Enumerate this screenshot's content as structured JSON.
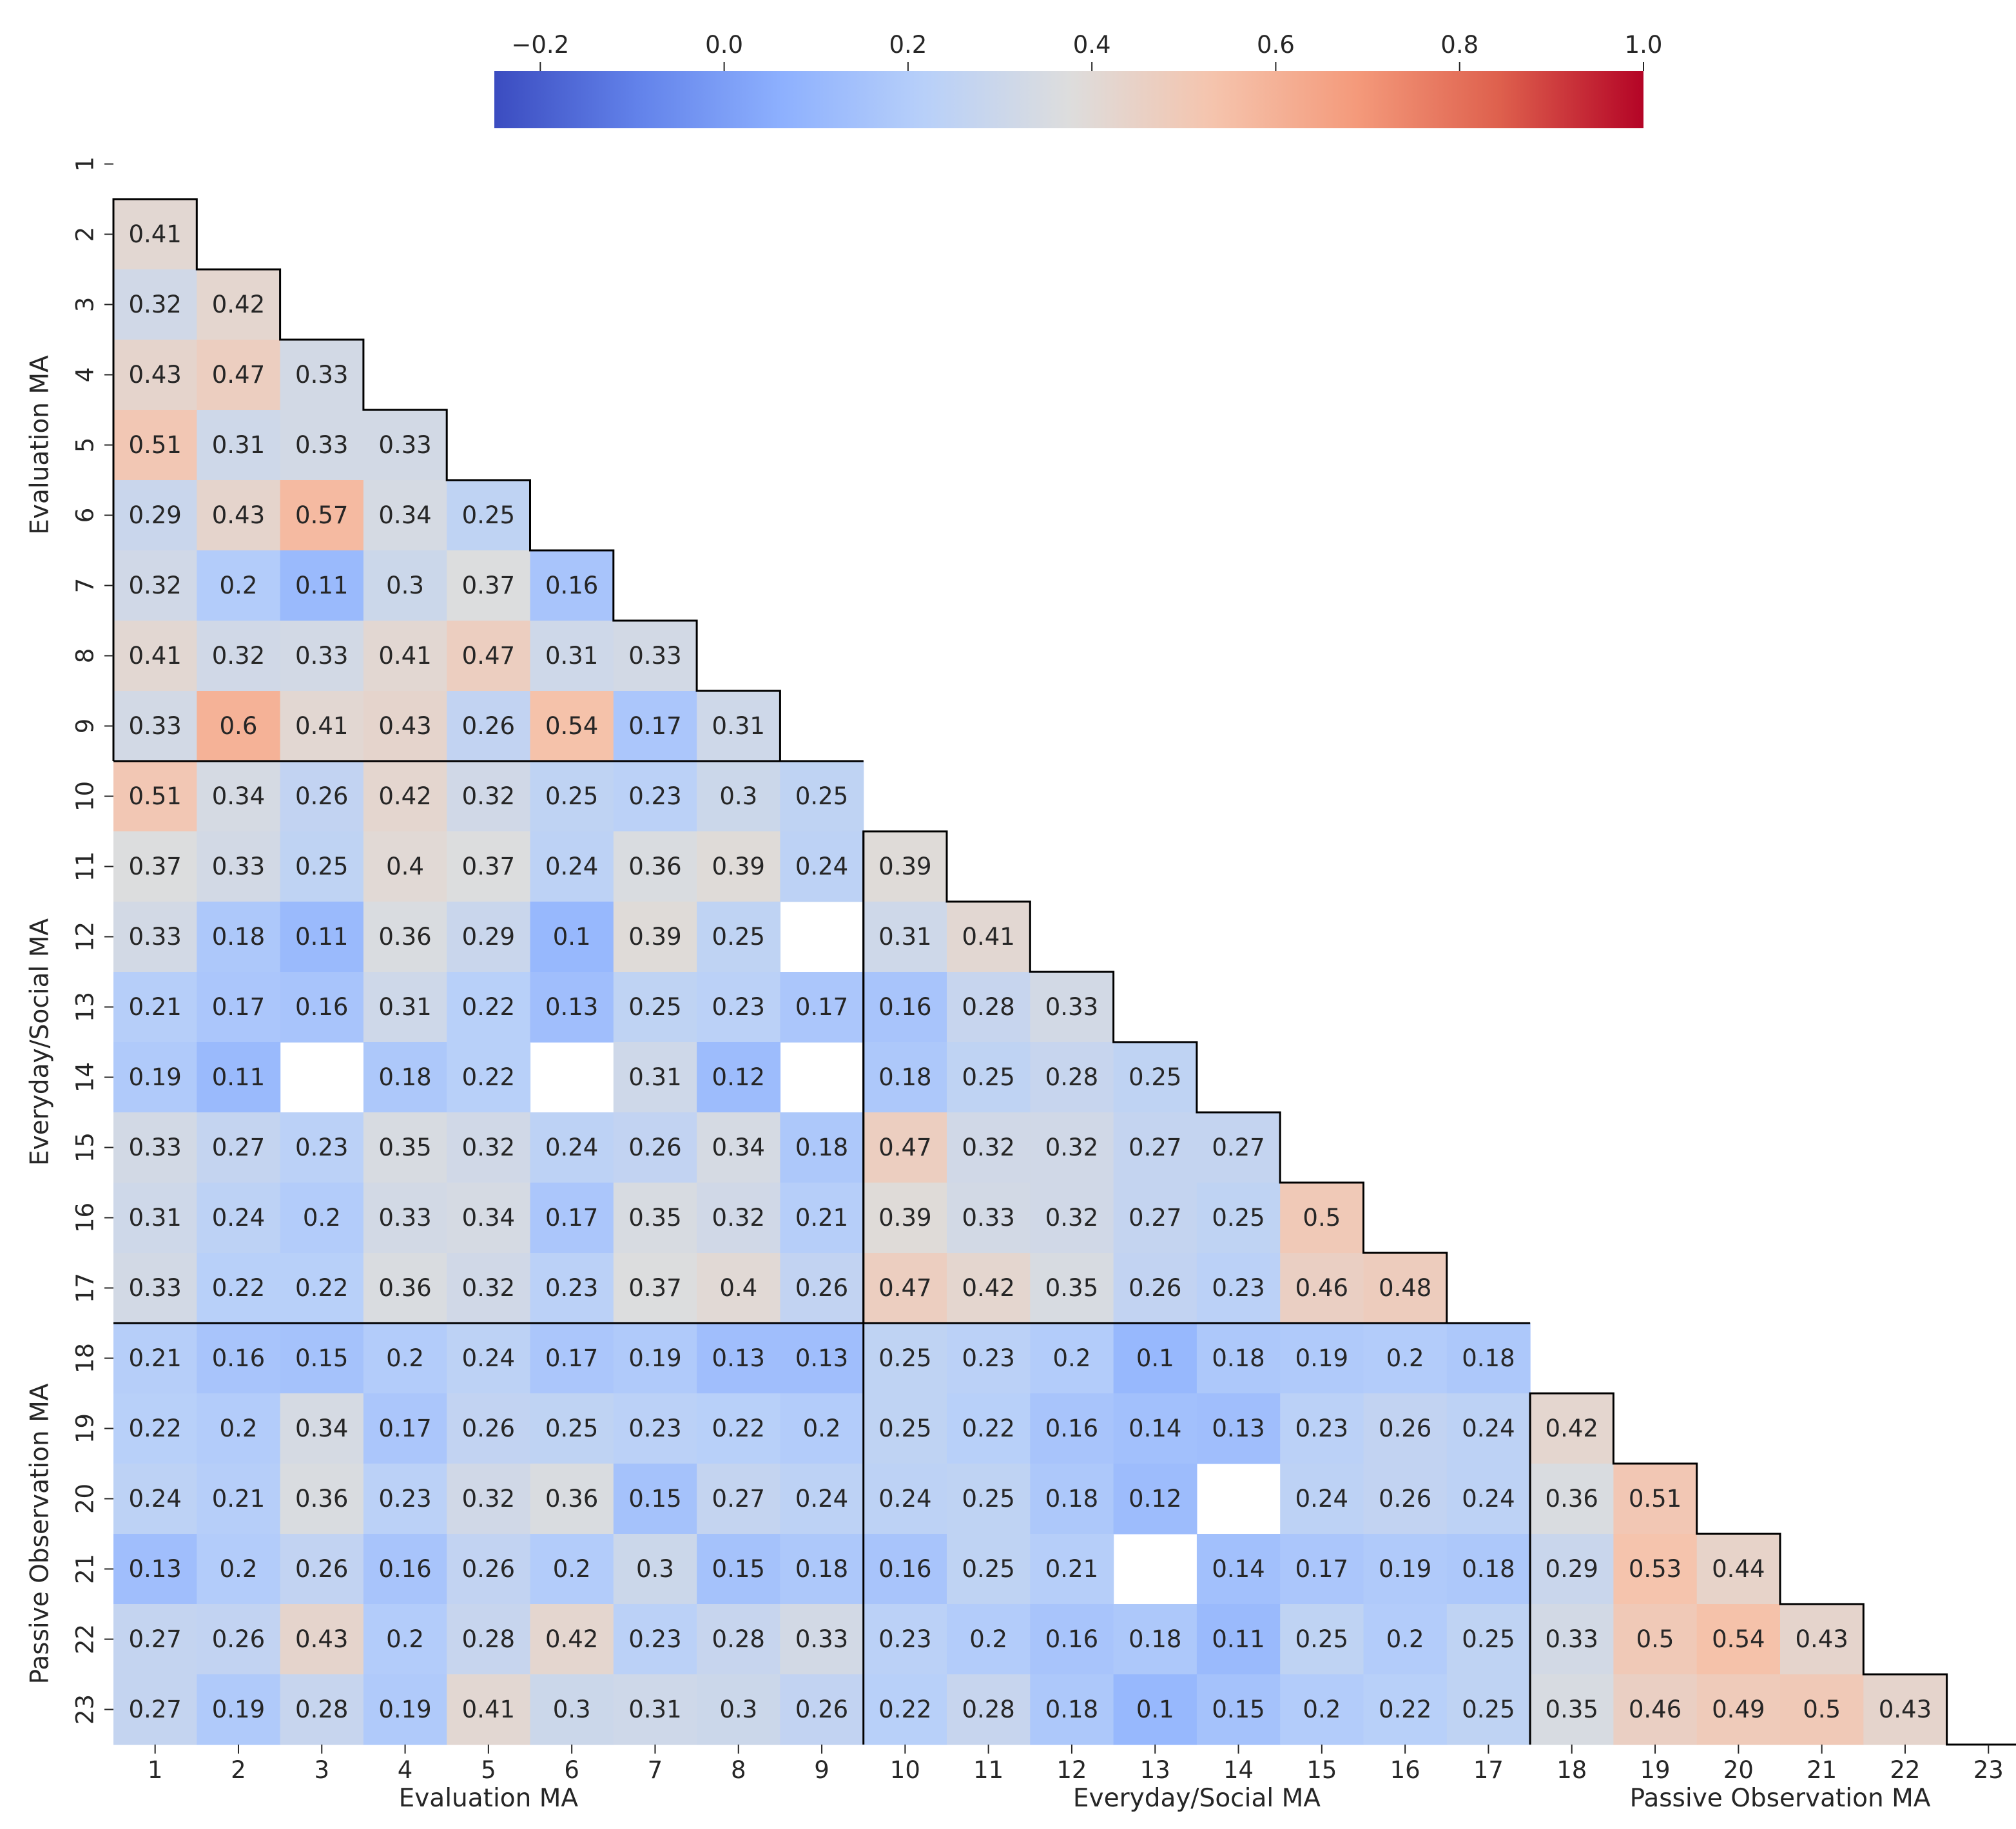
{
  "chart_data": {
    "type": "heatmap",
    "subtype": "lower-triangular correlation matrix",
    "colormap": "coolwarm",
    "vmin": -0.25,
    "vmax": 1.0,
    "labels": [
      "1",
      "2",
      "3",
      "4",
      "5",
      "6",
      "7",
      "8",
      "9",
      "10",
      "11",
      "12",
      "13",
      "14",
      "15",
      "16",
      "17",
      "18",
      "19",
      "20",
      "21",
      "22",
      "23"
    ],
    "x_tick_labels": [
      "1",
      "2",
      "3",
      "4",
      "5",
      "6",
      "7",
      "8",
      "9",
      "10",
      "11",
      "12",
      "13",
      "14",
      "15",
      "16",
      "17",
      "18",
      "19",
      "20",
      "21",
      "22",
      "23"
    ],
    "y_tick_labels": [
      "1",
      "2",
      "3",
      "4",
      "5",
      "6",
      "7",
      "8",
      "9",
      "10",
      "11",
      "12",
      "13",
      "14",
      "15",
      "16",
      "17",
      "18",
      "19",
      "20",
      "21",
      "22",
      "23"
    ],
    "colorbar": {
      "orientation": "horizontal",
      "position": "top",
      "ticks": [
        -0.2,
        0.0,
        0.2,
        0.4,
        0.6,
        0.8,
        1.0
      ],
      "tick_labels": [
        "−0.2",
        "0.0",
        "0.2",
        "0.4",
        "0.6",
        "0.8",
        "1.0"
      ]
    },
    "groups": [
      {
        "name": "Evaluation MA",
        "start": 1,
        "end": 9
      },
      {
        "name": "Everyday/Social MA",
        "start": 10,
        "end": 17
      },
      {
        "name": "Passive Observation MA",
        "start": 18,
        "end": 23
      }
    ],
    "matrix": [
      [],
      [
        0.41
      ],
      [
        0.32,
        0.42
      ],
      [
        0.43,
        0.47,
        0.33
      ],
      [
        0.51,
        0.31,
        0.33,
        0.33
      ],
      [
        0.29,
        0.43,
        0.57,
        0.34,
        0.25
      ],
      [
        0.32,
        0.2,
        0.11,
        0.3,
        0.37,
        0.16
      ],
      [
        0.41,
        0.32,
        0.33,
        0.41,
        0.47,
        0.31,
        0.33
      ],
      [
        0.33,
        0.6,
        0.41,
        0.43,
        0.26,
        0.54,
        0.17,
        0.31
      ],
      [
        0.51,
        0.34,
        0.26,
        0.42,
        0.32,
        0.25,
        0.23,
        0.3,
        0.25
      ],
      [
        0.37,
        0.33,
        0.25,
        0.4,
        0.37,
        0.24,
        0.36,
        0.39,
        0.24,
        0.39
      ],
      [
        0.33,
        0.18,
        0.11,
        0.36,
        0.29,
        0.1,
        0.39,
        0.25,
        null,
        0.31,
        0.41
      ],
      [
        0.21,
        0.17,
        0.16,
        0.31,
        0.22,
        0.13,
        0.25,
        0.23,
        0.17,
        0.16,
        0.28,
        0.33
      ],
      [
        0.19,
        0.11,
        null,
        0.18,
        0.22,
        null,
        0.31,
        0.12,
        null,
        0.18,
        0.25,
        0.28,
        0.25
      ],
      [
        0.33,
        0.27,
        0.23,
        0.35,
        0.32,
        0.24,
        0.26,
        0.34,
        0.18,
        0.47,
        0.32,
        0.32,
        0.27,
        0.27
      ],
      [
        0.31,
        0.24,
        0.2,
        0.33,
        0.34,
        0.17,
        0.35,
        0.32,
        0.21,
        0.39,
        0.33,
        0.32,
        0.27,
        0.25,
        0.5
      ],
      [
        0.33,
        0.22,
        0.22,
        0.36,
        0.32,
        0.23,
        0.37,
        0.4,
        0.26,
        0.47,
        0.42,
        0.35,
        0.26,
        0.23,
        0.46,
        0.48
      ],
      [
        0.21,
        0.16,
        0.15,
        0.2,
        0.24,
        0.17,
        0.19,
        0.13,
        0.13,
        0.25,
        0.23,
        0.2,
        0.1,
        0.18,
        0.19,
        0.2,
        0.18
      ],
      [
        0.22,
        0.2,
        0.34,
        0.17,
        0.26,
        0.25,
        0.23,
        0.22,
        0.2,
        0.25,
        0.22,
        0.16,
        0.14,
        0.13,
        0.23,
        0.26,
        0.24,
        0.42
      ],
      [
        0.24,
        0.21,
        0.36,
        0.23,
        0.32,
        0.36,
        0.15,
        0.27,
        0.24,
        0.24,
        0.25,
        0.18,
        0.12,
        null,
        0.24,
        0.26,
        0.24,
        0.36,
        0.51
      ],
      [
        0.13,
        0.2,
        0.26,
        0.16,
        0.26,
        0.2,
        0.3,
        0.15,
        0.18,
        0.16,
        0.25,
        0.21,
        null,
        0.14,
        0.17,
        0.19,
        0.18,
        0.29,
        0.53,
        0.44
      ],
      [
        0.27,
        0.26,
        0.43,
        0.2,
        0.28,
        0.42,
        0.23,
        0.28,
        0.33,
        0.23,
        0.2,
        0.16,
        0.18,
        0.11,
        0.25,
        0.2,
        0.25,
        0.33,
        0.5,
        0.54,
        0.43
      ],
      [
        0.27,
        0.19,
        0.28,
        0.19,
        0.41,
        0.3,
        0.31,
        0.3,
        0.26,
        0.22,
        0.28,
        0.18,
        0.1,
        0.15,
        0.2,
        0.22,
        0.25,
        0.35,
        0.46,
        0.49,
        0.5,
        0.43
      ]
    ],
    "grid": false
  }
}
